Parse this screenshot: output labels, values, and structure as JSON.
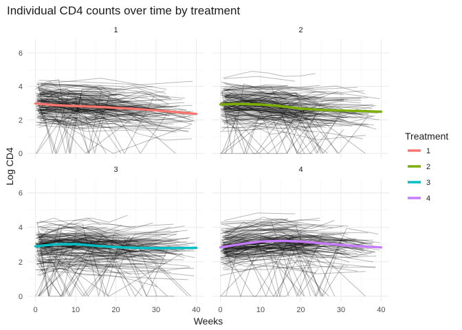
{
  "chart_data": {
    "type": "line",
    "title": "Individual CD4 counts over time by treatment",
    "xlabel": "Weeks",
    "ylabel": "Log CD4",
    "xlim": [
      0,
      40
    ],
    "ylim": [
      0,
      6.5
    ],
    "x_ticks": [
      0,
      10,
      20,
      30,
      40
    ],
    "y_ticks": [
      0,
      2,
      4,
      6
    ],
    "grid": true,
    "legend": {
      "title": "Treatment",
      "placement": "right"
    },
    "panels": [
      {
        "label": "1",
        "smooth": {
          "name": "1",
          "color": "#F8766D",
          "x": [
            0,
            5,
            10,
            15,
            20,
            25,
            30,
            35,
            40
          ],
          "y": [
            2.98,
            2.88,
            2.83,
            2.79,
            2.72,
            2.66,
            2.57,
            2.47,
            2.36
          ]
        }
      },
      {
        "label": "2",
        "smooth": {
          "name": "2",
          "color": "#7CAE00",
          "x": [
            0,
            5,
            10,
            15,
            20,
            25,
            30,
            35,
            40
          ],
          "y": [
            2.93,
            2.96,
            2.92,
            2.82,
            2.68,
            2.6,
            2.56,
            2.53,
            2.49
          ]
        }
      },
      {
        "label": "3",
        "smooth": {
          "name": "3",
          "color": "#00BFC4",
          "x": [
            0,
            5,
            10,
            15,
            20,
            25,
            30,
            35,
            40
          ],
          "y": [
            2.9,
            3.02,
            3.03,
            2.93,
            2.85,
            2.81,
            2.79,
            2.8,
            2.81
          ]
        }
      },
      {
        "label": "4",
        "smooth": {
          "name": "4",
          "color": "#C77CFF",
          "x": [
            0,
            5,
            10,
            15,
            20,
            25,
            30,
            35,
            40
          ],
          "y": [
            2.84,
            3.03,
            3.18,
            3.22,
            3.18,
            3.08,
            2.98,
            2.89,
            2.84
          ]
        }
      }
    ]
  }
}
